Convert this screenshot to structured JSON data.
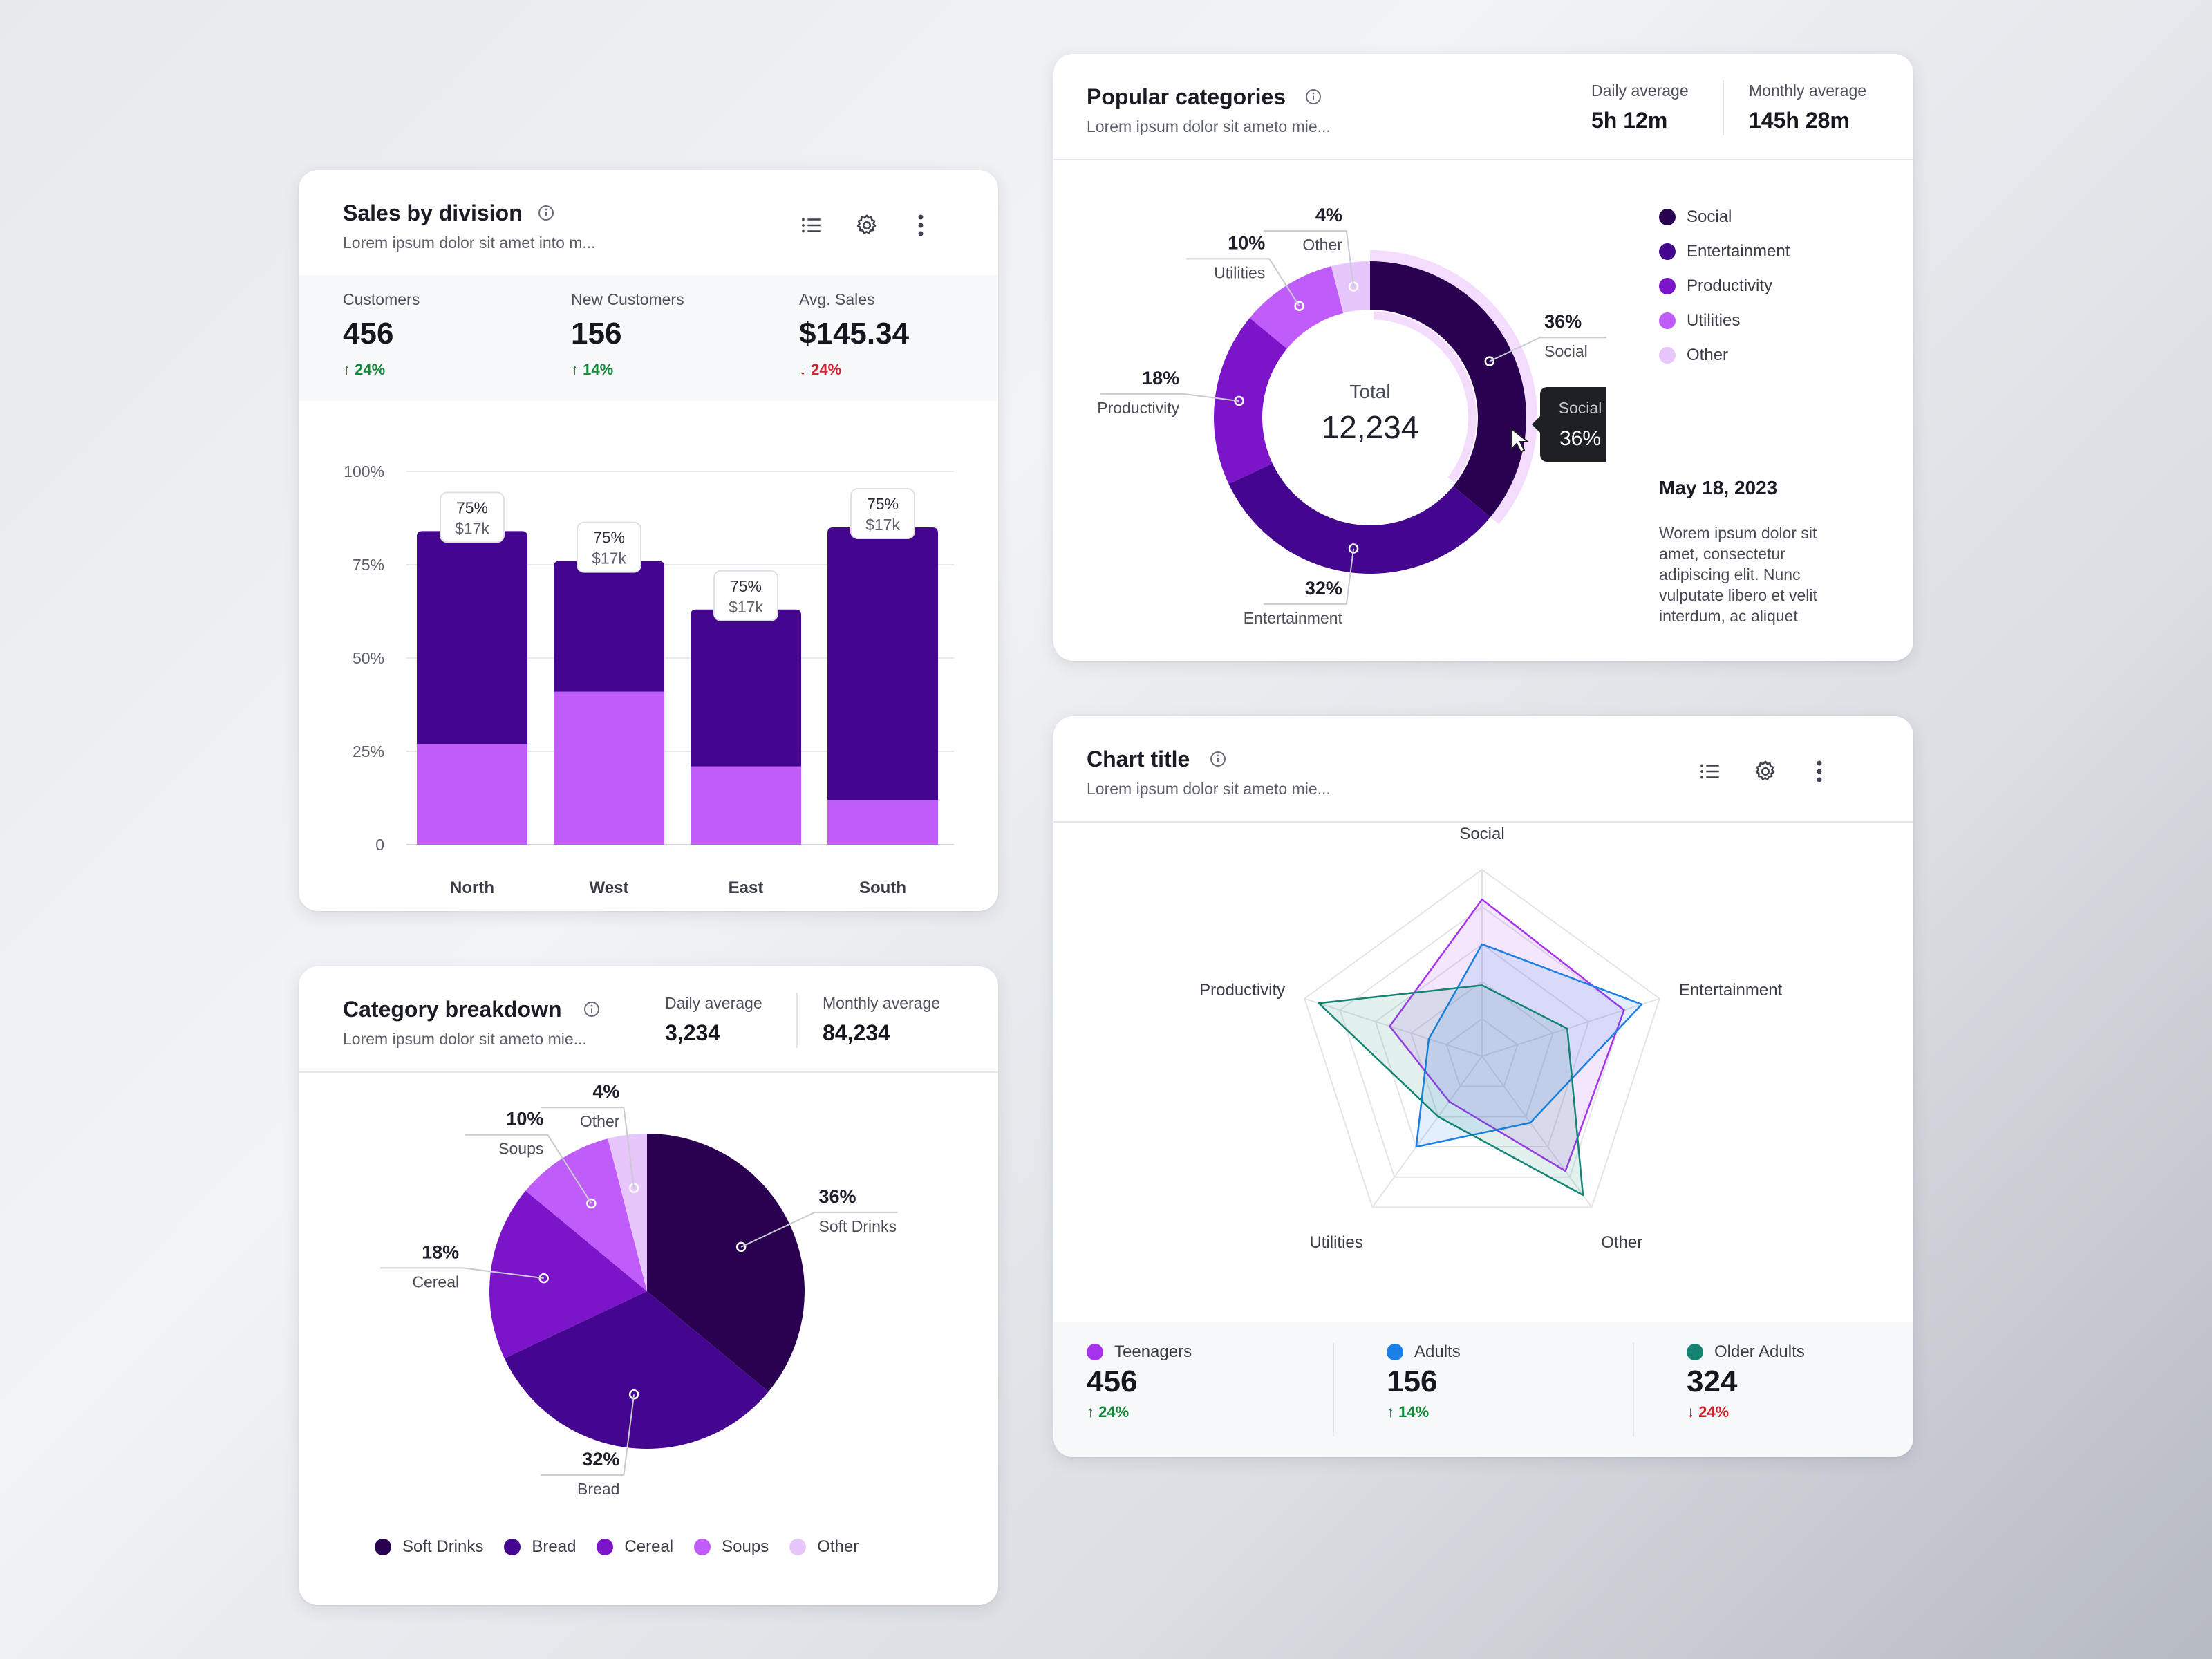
{
  "sales": {
    "title": "Sales by division",
    "subtitle": "Lorem ipsum dolor sit amet into m...",
    "stats": [
      {
        "label": "Customers",
        "value": "456",
        "delta": "24%",
        "direction": "up"
      },
      {
        "label": "New Customers",
        "value": "156",
        "delta": "14%",
        "direction": "up"
      },
      {
        "label": "Avg. Sales",
        "value": "$145.34",
        "delta": "24%",
        "direction": "down"
      }
    ]
  },
  "popular": {
    "title": "Popular categories",
    "subtitle": "Lorem ipsum dolor sit ameto mie...",
    "daily_label": "Daily average",
    "daily_value": "5h 12m",
    "monthly_label": "Monthly average",
    "monthly_value": "145h 28m",
    "center_label": "Total",
    "center_value": "12,234",
    "tooltip_label": "Social",
    "tooltip_value": "36%",
    "date": "May 18, 2023",
    "description": "Worem ipsum dolor sit amet, consectetur adipiscing elit. Nunc vulputate libero et velit interdum, ac aliquet"
  },
  "breakdown": {
    "title": "Category breakdown",
    "subtitle": "Lorem ipsum dolor sit ameto mie...",
    "daily_label": "Daily average",
    "daily_value": "3,234",
    "monthly_label": "Monthly average",
    "monthly_value": "84,234"
  },
  "radar": {
    "title": "Chart title",
    "subtitle": "Lorem ipsum dolor sit ameto mie...",
    "stats": [
      {
        "label": "Teenagers",
        "value": "456",
        "delta": "24%",
        "direction": "up",
        "color": "#a634ec"
      },
      {
        "label": "Adults",
        "value": "156",
        "delta": "14%",
        "direction": "up",
        "color": "#1a7fe6"
      },
      {
        "label": "Older Adults",
        "value": "324",
        "delta": "24%",
        "direction": "down",
        "color": "#138473"
      }
    ]
  },
  "chart_data": [
    {
      "id": "sales-by-division",
      "type": "bar",
      "stacked": true,
      "categories": [
        "North",
        "West",
        "East",
        "South"
      ],
      "series": [
        {
          "color": "#bf5cfa",
          "values": [
            27,
            41,
            21,
            12
          ]
        },
        {
          "color": "#44068e",
          "values": [
            57,
            35,
            42,
            73
          ]
        }
      ],
      "data_labels": [
        {
          "pct": "75%",
          "amount": "$17k"
        },
        {
          "pct": "75%",
          "amount": "$17k"
        },
        {
          "pct": "75%",
          "amount": "$17k"
        },
        {
          "pct": "75%",
          "amount": "$17k"
        }
      ],
      "yticks": [
        "0",
        "25%",
        "50%",
        "75%",
        "100%"
      ],
      "ylim": [
        0,
        100
      ],
      "grid": true
    },
    {
      "id": "popular-categories",
      "type": "pie",
      "donut": true,
      "slices": [
        {
          "label": "Social",
          "value": 36,
          "display": "36%",
          "color": "#2a0050"
        },
        {
          "label": "Entertainment",
          "value": 32,
          "display": "32%",
          "color": "#44068e"
        },
        {
          "label": "Productivity",
          "value": 18,
          "display": "18%",
          "color": "#7c14c9"
        },
        {
          "label": "Utilities",
          "value": 10,
          "display": "10%",
          "color": "#bf5cfa"
        },
        {
          "label": "Other",
          "value": 4,
          "display": "4%",
          "color": "#e6c6fb"
        }
      ],
      "highlighted": "Social",
      "legend": "right"
    },
    {
      "id": "category-breakdown",
      "type": "pie",
      "slices": [
        {
          "label": "Soft Drinks",
          "value": 36,
          "display": "36%",
          "color": "#2a0050"
        },
        {
          "label": "Bread",
          "value": 32,
          "display": "32%",
          "color": "#44068e"
        },
        {
          "label": "Cereal",
          "value": 18,
          "display": "18%",
          "color": "#7c14c9"
        },
        {
          "label": "Soups",
          "value": 10,
          "display": "10%",
          "color": "#bf5cfa"
        },
        {
          "label": "Other",
          "value": 4,
          "display": "4%",
          "color": "#e6c6fb"
        }
      ],
      "legend": "bottom"
    },
    {
      "id": "radar-chart",
      "type": "radar",
      "axes": [
        "Social",
        "Entertainment",
        "Other",
        "Utilities",
        "Productivity"
      ],
      "max": 5,
      "series": [
        {
          "name": "Teenagers",
          "color": "#a634ec",
          "values": [
            4.2,
            4.0,
            3.8,
            1.5,
            2.6
          ]
        },
        {
          "name": "Adults",
          "color": "#1a7fe6",
          "values": [
            3.0,
            4.5,
            2.2,
            3.0,
            1.5
          ]
        },
        {
          "name": "Older Adults",
          "color": "#138473",
          "values": [
            1.9,
            2.4,
            4.6,
            2.0,
            4.6
          ]
        }
      ]
    }
  ]
}
